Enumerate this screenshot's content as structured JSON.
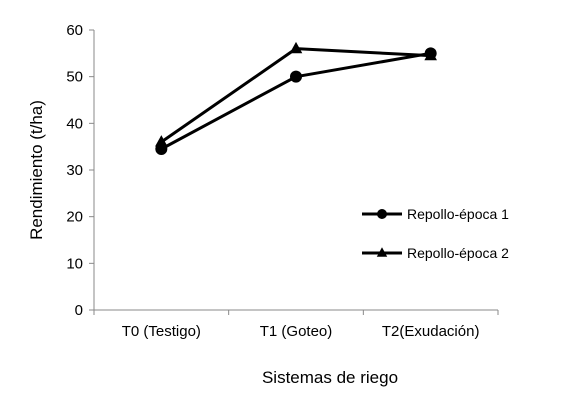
{
  "chart_data": {
    "type": "line",
    "title": "",
    "xlabel": "Sistemas de riego",
    "ylabel": "Rendimiento (t/ha)",
    "categories": [
      "T0 (Testigo)",
      "T1 (Goteo)",
      "T2(Exudación)"
    ],
    "ylim": [
      0,
      60
    ],
    "yticks": [
      0,
      10,
      20,
      30,
      40,
      50,
      60
    ],
    "grid": false,
    "legend_position": "right",
    "series": [
      {
        "name": "Repollo-época 1",
        "marker": "circle",
        "color": "#000000",
        "values": [
          34.5,
          50,
          55
        ]
      },
      {
        "name": "Repollo-época 2",
        "marker": "triangle",
        "color": "#000000",
        "values": [
          36,
          56,
          54.5
        ]
      }
    ]
  }
}
